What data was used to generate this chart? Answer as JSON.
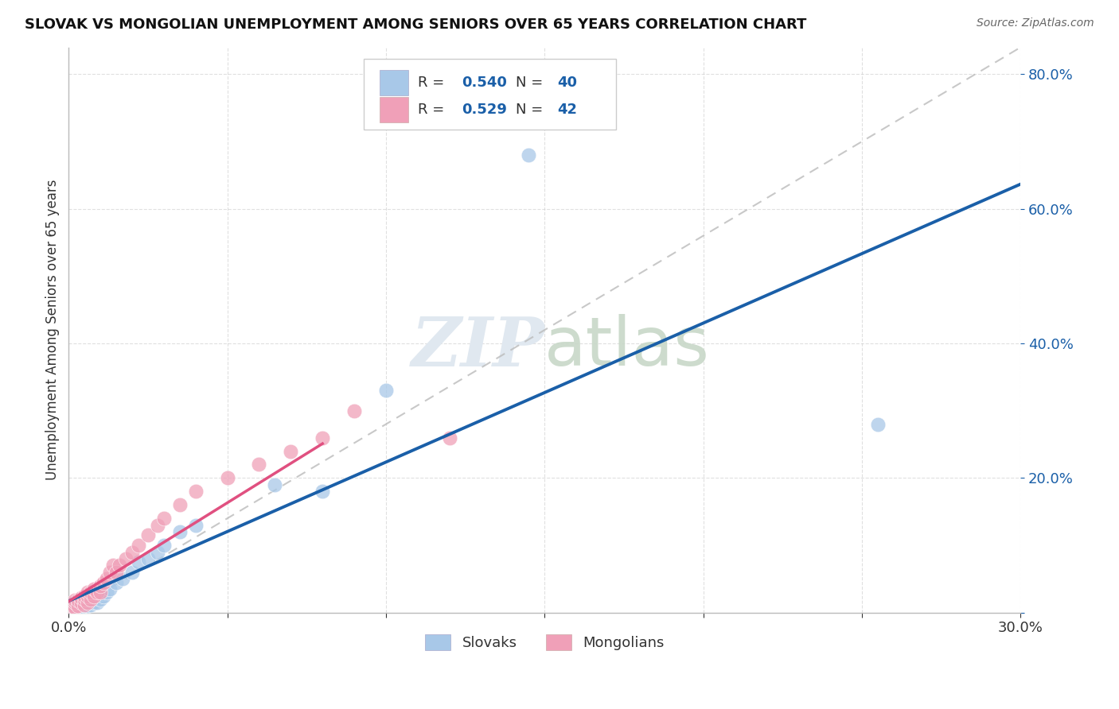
{
  "title": "SLOVAK VS MONGOLIAN UNEMPLOYMENT AMONG SENIORS OVER 65 YEARS CORRELATION CHART",
  "source": "Source: ZipAtlas.com",
  "ylabel": "Unemployment Among Seniors over 65 years",
  "xlim": [
    0.0,
    0.3
  ],
  "ylim": [
    0.0,
    0.84
  ],
  "xtick_positions": [
    0.0,
    0.05,
    0.1,
    0.15,
    0.2,
    0.25,
    0.3
  ],
  "xtick_labels": [
    "0.0%",
    "",
    "",
    "",
    "",
    "",
    "30.0%"
  ],
  "ytick_positions": [
    0.0,
    0.2,
    0.4,
    0.6,
    0.8
  ],
  "ytick_labels": [
    "",
    "20.0%",
    "40.0%",
    "60.0%",
    "80.0%"
  ],
  "blue_color": "#A8C8E8",
  "pink_color": "#F0A0B8",
  "blue_line_color": "#1A5FA8",
  "pink_line_color": "#E05080",
  "diag_line_color": "#BBBBBB",
  "text_blue": "#1A5FA8",
  "text_color": "#333333",
  "watermark_color": "#E0E8F0",
  "legend_R_slovak": "R = 0.540",
  "legend_N_slovak": "N = 40",
  "legend_R_mongol": "R = 0.529",
  "legend_N_mongol": "N = 42",
  "slovak_x": [
    0.001,
    0.001,
    0.002,
    0.002,
    0.003,
    0.003,
    0.003,
    0.004,
    0.004,
    0.005,
    0.005,
    0.005,
    0.006,
    0.006,
    0.007,
    0.007,
    0.007,
    0.008,
    0.008,
    0.009,
    0.009,
    0.01,
    0.01,
    0.011,
    0.012,
    0.013,
    0.015,
    0.017,
    0.02,
    0.022,
    0.025,
    0.028,
    0.03,
    0.035,
    0.04,
    0.065,
    0.08,
    0.1,
    0.145,
    0.255
  ],
  "slovak_y": [
    0.004,
    0.008,
    0.005,
    0.01,
    0.006,
    0.01,
    0.015,
    0.008,
    0.013,
    0.01,
    0.015,
    0.02,
    0.01,
    0.018,
    0.012,
    0.018,
    0.022,
    0.015,
    0.025,
    0.015,
    0.022,
    0.02,
    0.028,
    0.025,
    0.03,
    0.035,
    0.045,
    0.05,
    0.06,
    0.075,
    0.08,
    0.09,
    0.1,
    0.12,
    0.13,
    0.19,
    0.18,
    0.33,
    0.68,
    0.28
  ],
  "mongol_x": [
    0.001,
    0.001,
    0.002,
    0.002,
    0.002,
    0.003,
    0.003,
    0.004,
    0.004,
    0.005,
    0.005,
    0.005,
    0.006,
    0.006,
    0.006,
    0.007,
    0.007,
    0.008,
    0.008,
    0.009,
    0.01,
    0.01,
    0.011,
    0.012,
    0.013,
    0.014,
    0.015,
    0.016,
    0.018,
    0.02,
    0.022,
    0.025,
    0.028,
    0.03,
    0.035,
    0.04,
    0.05,
    0.06,
    0.07,
    0.08,
    0.09,
    0.12
  ],
  "mongol_y": [
    0.005,
    0.01,
    0.008,
    0.015,
    0.018,
    0.01,
    0.018,
    0.015,
    0.022,
    0.012,
    0.02,
    0.025,
    0.015,
    0.025,
    0.03,
    0.02,
    0.03,
    0.025,
    0.035,
    0.03,
    0.03,
    0.04,
    0.045,
    0.05,
    0.06,
    0.07,
    0.06,
    0.07,
    0.08,
    0.09,
    0.1,
    0.115,
    0.13,
    0.14,
    0.16,
    0.18,
    0.2,
    0.22,
    0.24,
    0.26,
    0.3,
    0.26
  ]
}
